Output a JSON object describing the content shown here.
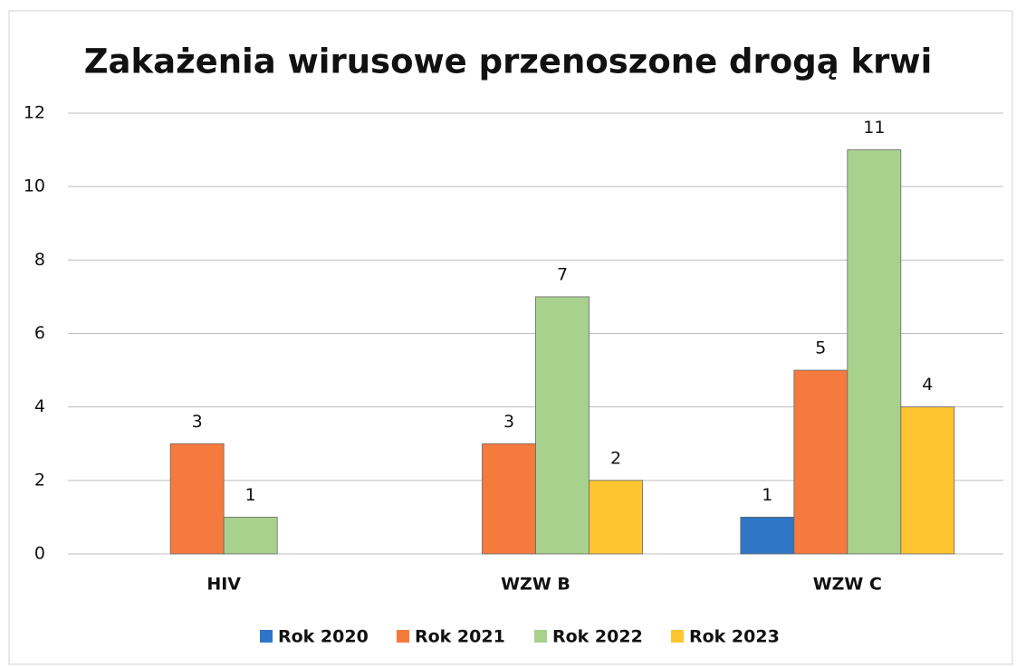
{
  "chart_data": {
    "type": "bar",
    "title": "Zakażenia wirusowe przenoszone drogą krwi",
    "categories": [
      "HIV",
      "WZW B",
      "WZW C"
    ],
    "series": [
      {
        "name": "Rok 2020",
        "color": "#2e75c6",
        "values": [
          null,
          null,
          1
        ]
      },
      {
        "name": "Rok 2021",
        "color": "#f47b3d",
        "values": [
          3,
          3,
          5
        ]
      },
      {
        "name": "Rok 2022",
        "color": "#a9d18e",
        "values": [
          1,
          7,
          11
        ]
      },
      {
        "name": "Rok 2023",
        "color": "#ffc531",
        "values": [
          null,
          2,
          4
        ]
      }
    ],
    "ylim": [
      0,
      12
    ],
    "yticks": [
      0,
      2,
      4,
      6,
      8,
      10,
      12
    ],
    "grid": true,
    "legend": "bottom"
  }
}
